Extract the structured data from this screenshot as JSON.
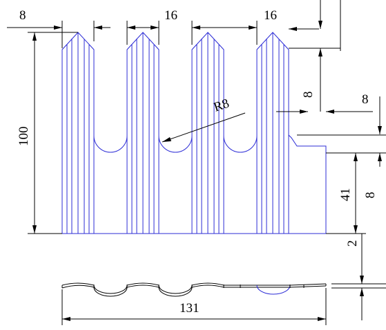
{
  "drawing": {
    "dims": {
      "tip_width": "8",
      "slot_gap_left": "16",
      "slot_gap_right": "16",
      "height_total": "100",
      "radius": "R8",
      "side_step": "8",
      "side_offset": "8",
      "lower_height": "41",
      "right_gap": "8",
      "thickness": "2",
      "total_width": "131"
    },
    "colors": {
      "part_lines": "#2b2bd6",
      "dimension_lines": "#000000"
    }
  }
}
